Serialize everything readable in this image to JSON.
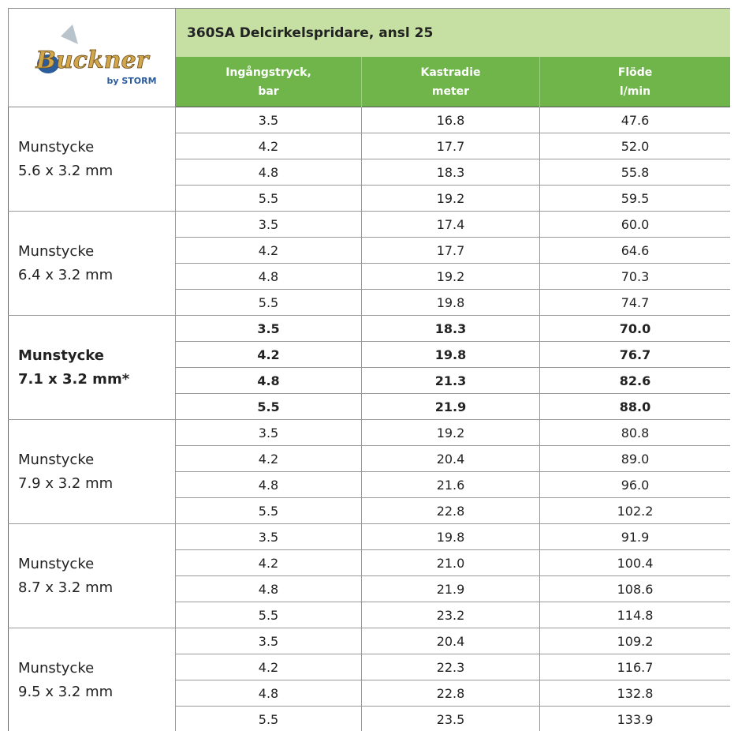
{
  "logo": {
    "brand": "Buckner",
    "sub": "by STORM"
  },
  "header": {
    "title": "360SA Delcirkelspridare, ansl 25",
    "columns": [
      [
        "Ingångstryck,",
        "bar"
      ],
      [
        "Kastradie",
        "meter"
      ],
      [
        "Flöde",
        "l/min"
      ]
    ]
  },
  "groups": [
    {
      "label": [
        "Munstycke",
        "5.6 x 3.2 mm"
      ],
      "bold": false,
      "rows": [
        [
          "3.5",
          "16.8",
          "47.6"
        ],
        [
          "4.2",
          "17.7",
          "52.0"
        ],
        [
          "4.8",
          "18.3",
          "55.8"
        ],
        [
          "5.5",
          "19.2",
          "59.5"
        ]
      ]
    },
    {
      "label": [
        "Munstycke",
        "6.4 x 3.2 mm"
      ],
      "bold": false,
      "rows": [
        [
          "3.5",
          "17.4",
          "60.0"
        ],
        [
          "4.2",
          "17.7",
          "64.6"
        ],
        [
          "4.8",
          "19.2",
          "70.3"
        ],
        [
          "5.5",
          "19.8",
          "74.7"
        ]
      ]
    },
    {
      "label": [
        "Munstycke",
        "7.1 x 3.2 mm*"
      ],
      "bold": true,
      "rows": [
        [
          "3.5",
          "18.3",
          "70.0"
        ],
        [
          "4.2",
          "19.8",
          "76.7"
        ],
        [
          "4.8",
          "21.3",
          "82.6"
        ],
        [
          "5.5",
          "21.9",
          "88.0"
        ]
      ]
    },
    {
      "label": [
        "Munstycke",
        "7.9 x 3.2 mm"
      ],
      "bold": false,
      "rows": [
        [
          "3.5",
          "19.2",
          "80.8"
        ],
        [
          "4.2",
          "20.4",
          "89.0"
        ],
        [
          "4.8",
          "21.6",
          "96.0"
        ],
        [
          "5.5",
          "22.8",
          "102.2"
        ]
      ]
    },
    {
      "label": [
        "Munstycke",
        "8.7 x 3.2 mm"
      ],
      "bold": false,
      "rows": [
        [
          "3.5",
          "19.8",
          "91.9"
        ],
        [
          "4.2",
          "21.0",
          "100.4"
        ],
        [
          "4.8",
          "21.9",
          "108.6"
        ],
        [
          "5.5",
          "23.2",
          "114.8"
        ]
      ]
    },
    {
      "label": [
        "Munstycke",
        "9.5 x 3.2 mm"
      ],
      "bold": false,
      "rows": [
        [
          "3.5",
          "20.4",
          "109.2"
        ],
        [
          "4.2",
          "22.3",
          "116.7"
        ],
        [
          "4.8",
          "22.8",
          "132.8"
        ],
        [
          "5.5",
          "23.5",
          "133.9"
        ]
      ]
    }
  ]
}
